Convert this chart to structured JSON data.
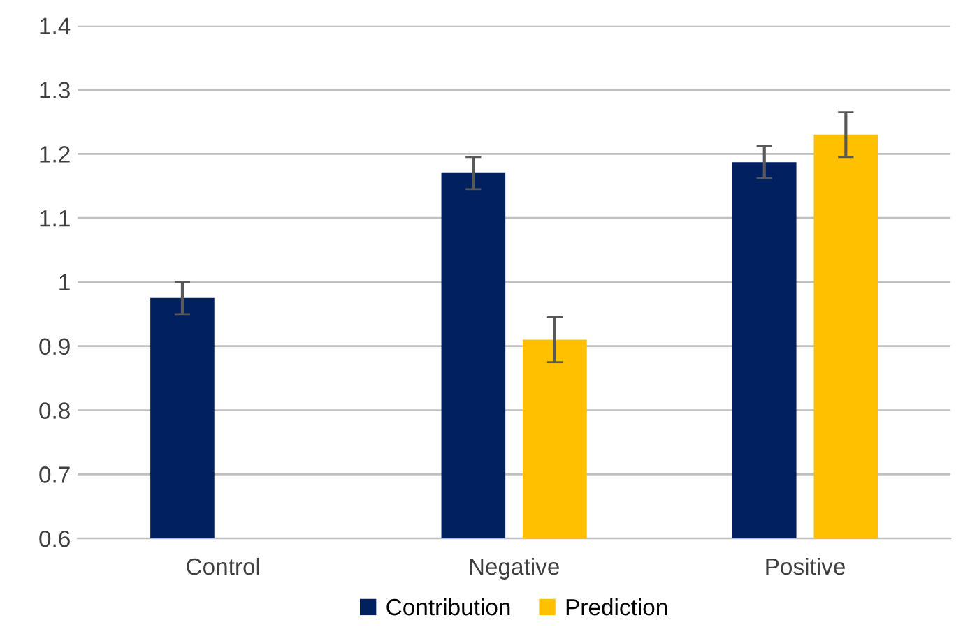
{
  "chart_data": {
    "type": "bar",
    "categories": [
      "Control",
      "Negative",
      "Positive"
    ],
    "series": [
      {
        "name": "Contribution",
        "color": "#002060",
        "values": [
          0.975,
          1.17,
          1.187
        ],
        "errors": [
          0.025,
          0.025,
          0.025
        ]
      },
      {
        "name": "Prediction",
        "color": "#ffc000",
        "values": [
          null,
          0.91,
          1.23
        ],
        "errors": [
          null,
          0.035,
          0.035
        ]
      }
    ],
    "ylim": [
      0.6,
      1.4
    ],
    "yticks": [
      0.6,
      0.7,
      0.8,
      0.9,
      1,
      1.1,
      1.2,
      1.3,
      1.4
    ],
    "grid": "y",
    "legend": "bottom"
  }
}
